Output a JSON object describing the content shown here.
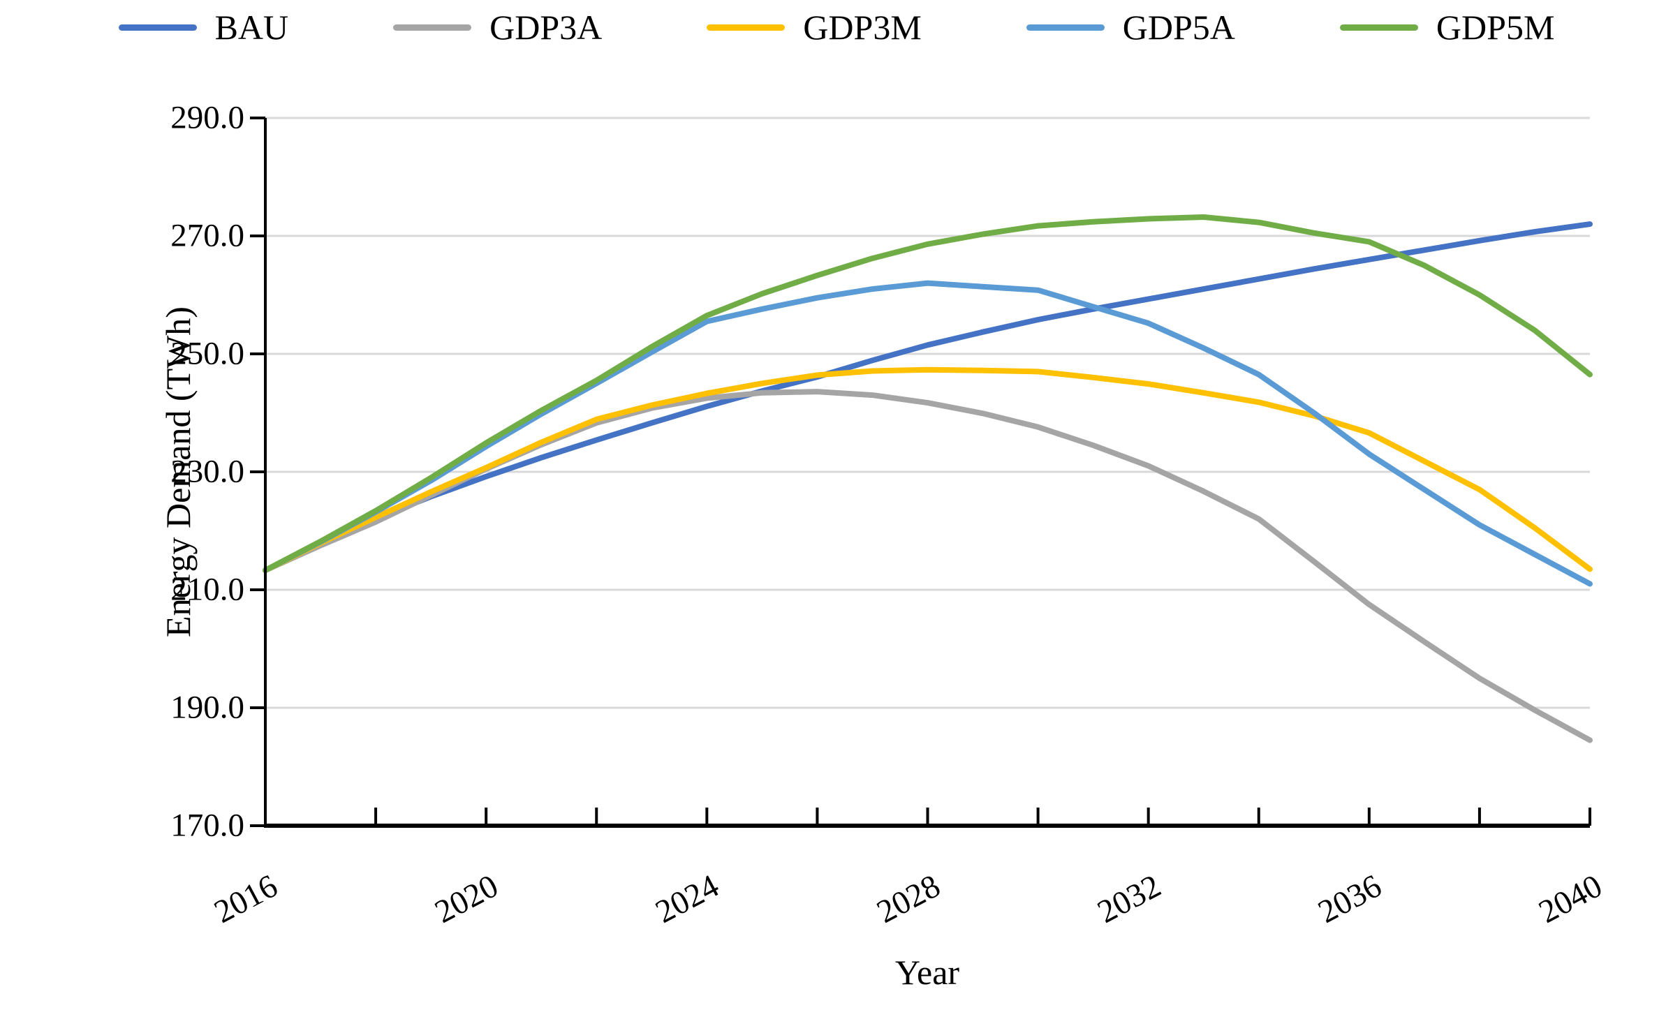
{
  "chart_data": {
    "type": "line",
    "title": "",
    "xlabel": "Year",
    "ylabel": "Energy Demand (TWh)",
    "ylim": [
      170,
      290
    ],
    "y_tick_step": 20,
    "y_ticks": [
      290,
      270,
      250,
      230,
      210,
      190,
      170
    ],
    "y_tick_labels": [
      "290.0",
      "270.0",
      "250.0",
      "230.0",
      "210.0",
      "190.0",
      "170.0"
    ],
    "x_major_ticks": [
      2016,
      2020,
      2024,
      2028,
      2032,
      2036,
      2040
    ],
    "x_major_labels": [
      "2016",
      "2020",
      "2024",
      "2028",
      "2032",
      "2036",
      "2040"
    ],
    "x_minor_tick_years": [
      2018,
      2020,
      2022,
      2024,
      2026,
      2028,
      2030,
      2032,
      2034,
      2036,
      2038,
      2040
    ],
    "xlim": [
      2016,
      2040
    ],
    "grid": "horizontal",
    "legend_position": "top",
    "x": [
      2016,
      2017,
      2018,
      2019,
      2020,
      2021,
      2022,
      2023,
      2024,
      2025,
      2026,
      2027,
      2028,
      2029,
      2030,
      2031,
      2032,
      2033,
      2034,
      2035,
      2036,
      2037,
      2038,
      2039,
      2040
    ],
    "series": [
      {
        "name": "BAU",
        "color": "#4472C4",
        "values": [
          213.3,
          217.9,
          222.1,
          225.8,
          229.2,
          232.4,
          235.4,
          238.3,
          241.1,
          243.7,
          246.1,
          248.9,
          251.5,
          253.7,
          255.8,
          257.6,
          259.3,
          261.0,
          262.7,
          264.4,
          266.0,
          267.6,
          269.2,
          270.7,
          272.0
        ]
      },
      {
        "name": "GDP3A",
        "color": "#A5A5A5",
        "values": [
          213.3,
          217.5,
          221.5,
          226.0,
          230.5,
          234.6,
          238.3,
          240.8,
          242.5,
          243.4,
          243.6,
          243.0,
          241.7,
          239.9,
          237.6,
          234.5,
          231.0,
          226.7,
          222.0,
          214.8,
          207.5,
          201.2,
          195.0,
          189.6,
          184.5
        ]
      },
      {
        "name": "GDP3M",
        "color": "#FFC000",
        "values": [
          213.3,
          217.9,
          222.3,
          226.6,
          230.7,
          235.0,
          238.9,
          241.3,
          243.3,
          245.0,
          246.4,
          247.1,
          247.3,
          247.2,
          247.0,
          246.0,
          244.9,
          243.4,
          241.8,
          239.5,
          236.6,
          231.8,
          227.0,
          220.5,
          213.5
        ]
      },
      {
        "name": "GDP5A",
        "color": "#5B9BD5",
        "values": [
          213.3,
          218.1,
          223.2,
          228.5,
          234.3,
          239.8,
          245.0,
          250.3,
          255.5,
          257.6,
          259.5,
          261.0,
          262.0,
          261.4,
          260.8,
          258.0,
          255.2,
          251.0,
          246.5,
          240.0,
          233.0,
          227.0,
          221.0,
          216.0,
          211.0
        ]
      },
      {
        "name": "GDP5M",
        "color": "#70AD47",
        "values": [
          213.3,
          218.2,
          223.4,
          229.0,
          234.9,
          240.4,
          245.5,
          251.2,
          256.5,
          260.2,
          263.3,
          266.2,
          268.6,
          270.3,
          271.7,
          272.4,
          272.9,
          273.2,
          272.3,
          270.5,
          269.0,
          265.0,
          260.0,
          254.0,
          246.5
        ]
      }
    ],
    "colors": {
      "gridline": "#D9D9D9",
      "axis": "#000000",
      "background": "#FFFFFF"
    }
  }
}
